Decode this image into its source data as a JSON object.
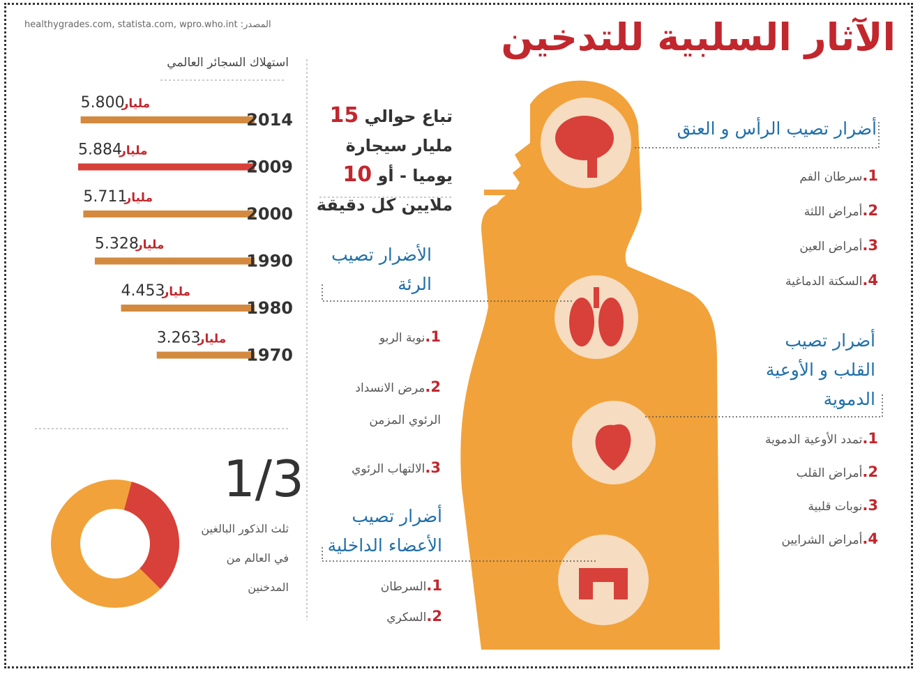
{
  "title": "الآثار السلبية للتدخين",
  "source": "المصدر: healthygrades.com, statista.com, wpro.who.int",
  "consumption": {
    "title": "استهلاك السجائر العالمي",
    "rows": [
      {
        "year": "2014",
        "value": "5.800",
        "unit": "مليار",
        "color": "#d38a3e"
      },
      {
        "year": "2009",
        "value": "5.884",
        "unit": "مليار",
        "color": "#d8403a"
      },
      {
        "year": "2000",
        "value": "5.711",
        "unit": "مليار",
        "color": "#d38a3e"
      },
      {
        "year": "1990",
        "value": "5.328",
        "unit": "مليار",
        "color": "#d38a3e"
      },
      {
        "year": "1980",
        "value": "4.453",
        "unit": "مليار",
        "color": "#d38a3e"
      },
      {
        "year": "1970",
        "value": "3.263",
        "unit": "مليار",
        "color": "#d38a3e"
      }
    ]
  },
  "sales_note": [
    "تباع حوالي ",
    "15",
    " مليار سيجارة يوميا - أو ",
    "10",
    " ملايين كل دقيقة"
  ],
  "stat": {
    "fraction": "1/3",
    "text": "ثلث الذكور البالغين في العالم من المدخنين"
  },
  "sections": {
    "head": {
      "title": "أضرار تصيب الرأس و العنق",
      "items": [
        {
          "num": "1.",
          "text": "سرطان الفم"
        },
        {
          "num": "2.",
          "text": "أمراض اللثة"
        },
        {
          "num": "3.",
          "text": "أمراض العين"
        },
        {
          "num": "4.",
          "text": "السكتة الدماغية"
        }
      ]
    },
    "lungs": {
      "title": "الأضرار تصيب الرئة",
      "items": [
        {
          "num": "1.",
          "text": "نوبة الربو"
        },
        {
          "num": "2.",
          "text": "مرض الانسداد الرئوي المزمن"
        },
        {
          "num": "3.",
          "text": "الالتهاب الرئوي"
        }
      ]
    },
    "heart": {
      "title": "أضرار تصيب القلب و الأوعية الدموية",
      "items": [
        {
          "num": "1.",
          "text": "تمدد الأوعية الدموية"
        },
        {
          "num": "2.",
          "text": "أمراض القلب"
        },
        {
          "num": "3.",
          "text": "نوبات قلبية"
        },
        {
          "num": "4.",
          "text": "أمراض الشرايين"
        }
      ]
    },
    "organs": {
      "title": "أضرار تصيب الأعضاء الداخلية",
      "items": [
        {
          "num": "1.",
          "text": "السرطان"
        },
        {
          "num": "2.",
          "text": "السكري"
        }
      ]
    }
  }
}
